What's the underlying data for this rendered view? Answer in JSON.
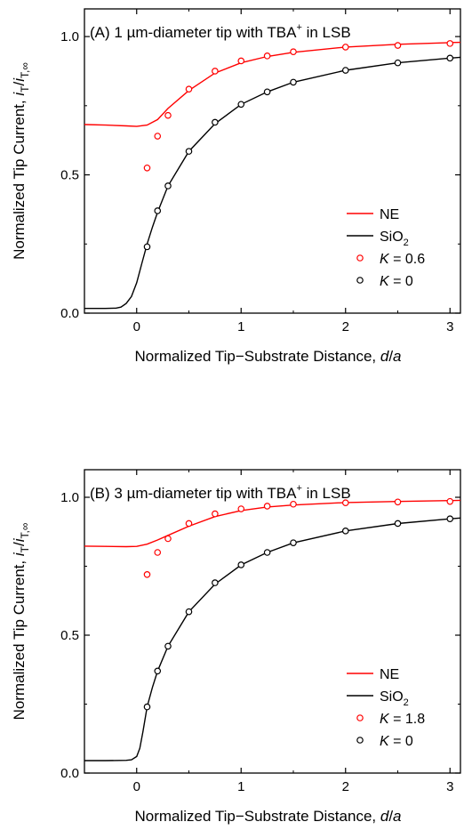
{
  "chart_data": [
    {
      "type": "line",
      "title": "(A) 1 µm-diameter tip with TBA⁺ in LSB",
      "title_parts": {
        "prefix": "(A) 1 ",
        "mu": "µ",
        "middle": "m-diameter tip with TBA",
        "sup": "+",
        "suffix": " in LSB"
      },
      "xlabel": "Normalized Tip−Substrate Distance, d/a",
      "xlabel_parts": {
        "main": "Normalized Tip−Substrate Distance, ",
        "var": "d",
        "slash": "/",
        "var2": "a"
      },
      "ylabel": "Normalized Tip Current, iT/iT,∞",
      "ylabel_parts": {
        "main": "Normalized Tip Current, ",
        "i1": "i",
        "sub1": "T",
        "slash": "/",
        "i2": "i",
        "sub2": "T,∞"
      },
      "xlim": [
        -0.5,
        3.1
      ],
      "ylim": [
        0.0,
        1.1
      ],
      "xticks": [
        0,
        1,
        2,
        3
      ],
      "xtick_labels": [
        "0",
        "1",
        "2",
        "3"
      ],
      "yticks": [
        0.0,
        0.5,
        1.0
      ],
      "ytick_labels": [
        "0.0",
        "0.5",
        "1.0"
      ],
      "legend_position": "lower-right",
      "series": [
        {
          "name": "NE",
          "kind": "line",
          "color": "#ff0000",
          "x": [
            -0.5,
            -0.3,
            -0.1,
            0.0,
            0.1,
            0.2,
            0.3,
            0.5,
            0.75,
            1.0,
            1.25,
            1.5,
            2.0,
            2.5,
            3.0,
            3.1
          ],
          "y": [
            0.682,
            0.68,
            0.677,
            0.675,
            0.68,
            0.7,
            0.74,
            0.805,
            0.868,
            0.905,
            0.928,
            0.943,
            0.962,
            0.972,
            0.978,
            0.979
          ]
        },
        {
          "name": "SiO2",
          "name_parts": {
            "main": "SiO",
            "sub": "2"
          },
          "kind": "line",
          "color": "#000000",
          "x": [
            -0.5,
            -0.3,
            -0.2,
            -0.15,
            -0.1,
            -0.05,
            0.0,
            0.05,
            0.1,
            0.15,
            0.2,
            0.3,
            0.5,
            0.75,
            1.0,
            1.25,
            1.5,
            2.0,
            2.5,
            3.0,
            3.1
          ],
          "y": [
            0.017,
            0.017,
            0.018,
            0.022,
            0.035,
            0.06,
            0.11,
            0.18,
            0.25,
            0.31,
            0.365,
            0.46,
            0.585,
            0.685,
            0.755,
            0.8,
            0.835,
            0.878,
            0.905,
            0.922,
            0.925
          ]
        },
        {
          "name": "K = 0.6",
          "name_parts": {
            "var": "K",
            "rest": " = 0.6"
          },
          "kind": "scatter",
          "color": "#ff0000",
          "x": [
            0.1,
            0.2,
            0.3,
            0.5,
            0.75,
            1.0,
            1.25,
            1.5,
            2.0,
            2.5,
            3.0
          ],
          "y": [
            0.525,
            0.64,
            0.715,
            0.81,
            0.875,
            0.912,
            0.93,
            0.945,
            0.962,
            0.968,
            0.975
          ]
        },
        {
          "name": "K = 0",
          "name_parts": {
            "var": "K",
            "rest": " = 0"
          },
          "kind": "scatter",
          "color": "#000000",
          "x": [
            0.1,
            0.2,
            0.3,
            0.5,
            0.75,
            1.0,
            1.25,
            1.5,
            2.0,
            2.5,
            3.0
          ],
          "y": [
            0.24,
            0.37,
            0.46,
            0.585,
            0.69,
            0.755,
            0.8,
            0.835,
            0.878,
            0.905,
            0.922
          ]
        }
      ]
    },
    {
      "type": "line",
      "title": "(B) 3 µm-diameter tip with TBA⁺ in LSB",
      "title_parts": {
        "prefix": "(B) 3 ",
        "mu": "µ",
        "middle": "m-diameter tip with TBA",
        "sup": "+",
        "suffix": " in LSB"
      },
      "xlabel": "Normalized Tip−Substrate Distance, d/a",
      "xlabel_parts": {
        "main": "Normalized Tip−Substrate Distance, ",
        "var": "d",
        "slash": "/",
        "var2": "a"
      },
      "ylabel": "Normalized Tip Current, iT/iT,∞",
      "ylabel_parts": {
        "main": "Normalized Tip Current, ",
        "i1": "i",
        "sub1": "T",
        "slash": "/",
        "i2": "i",
        "sub2": "T,∞"
      },
      "xlim": [
        -0.5,
        3.1
      ],
      "ylim": [
        0.0,
        1.1
      ],
      "xticks": [
        0,
        1,
        2,
        3
      ],
      "xtick_labels": [
        "0",
        "1",
        "2",
        "3"
      ],
      "yticks": [
        0.0,
        0.5,
        1.0
      ],
      "ytick_labels": [
        "0.0",
        "0.5",
        "1.0"
      ],
      "legend_position": "lower-right",
      "series": [
        {
          "name": "NE",
          "kind": "line",
          "color": "#ff0000",
          "x": [
            -0.5,
            -0.3,
            -0.1,
            0.0,
            0.1,
            0.2,
            0.3,
            0.5,
            0.75,
            1.0,
            1.25,
            1.5,
            2.0,
            2.5,
            3.0,
            3.1
          ],
          "y": [
            0.823,
            0.822,
            0.821,
            0.822,
            0.83,
            0.845,
            0.862,
            0.895,
            0.93,
            0.952,
            0.965,
            0.972,
            0.981,
            0.985,
            0.988,
            0.989
          ]
        },
        {
          "name": "SiO2",
          "name_parts": {
            "main": "SiO",
            "sub": "2"
          },
          "kind": "line",
          "color": "#000000",
          "x": [
            -0.5,
            -0.3,
            -0.1,
            -0.05,
            0.0,
            0.03,
            0.06,
            0.1,
            0.15,
            0.2,
            0.3,
            0.5,
            0.75,
            1.0,
            1.25,
            1.5,
            2.0,
            2.5,
            3.0,
            3.1
          ],
          "y": [
            0.045,
            0.045,
            0.046,
            0.048,
            0.06,
            0.09,
            0.15,
            0.24,
            0.31,
            0.37,
            0.46,
            0.585,
            0.685,
            0.755,
            0.8,
            0.835,
            0.878,
            0.905,
            0.922,
            0.925
          ]
        },
        {
          "name": "K = 1.8",
          "name_parts": {
            "var": "K",
            "rest": " = 1.8"
          },
          "kind": "scatter",
          "color": "#ff0000",
          "x": [
            0.1,
            0.2,
            0.3,
            0.5,
            0.75,
            1.0,
            1.25,
            1.5,
            2.0,
            2.5,
            3.0
          ],
          "y": [
            0.72,
            0.8,
            0.85,
            0.905,
            0.94,
            0.958,
            0.968,
            0.975,
            0.98,
            0.983,
            0.985
          ]
        },
        {
          "name": "K = 0",
          "name_parts": {
            "var": "K",
            "rest": " = 0"
          },
          "kind": "scatter",
          "color": "#000000",
          "x": [
            0.1,
            0.2,
            0.3,
            0.5,
            0.75,
            1.0,
            1.25,
            1.5,
            2.0,
            2.5,
            3.0
          ],
          "y": [
            0.24,
            0.37,
            0.46,
            0.585,
            0.69,
            0.755,
            0.8,
            0.835,
            0.878,
            0.905,
            0.922
          ]
        }
      ]
    }
  ]
}
